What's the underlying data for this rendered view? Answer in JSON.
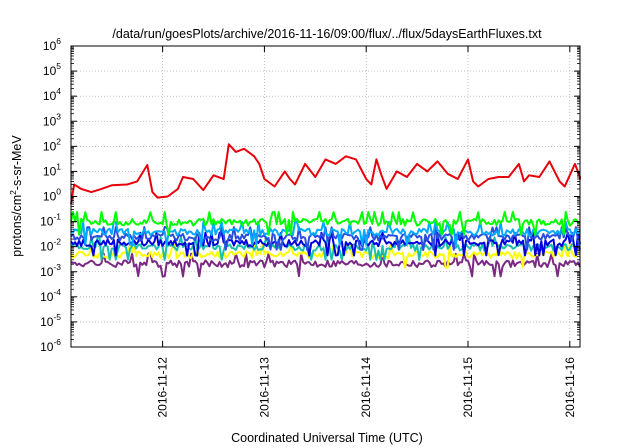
{
  "chart_data": {
    "type": "line",
    "title": "/data/run/goesPlots/archive/2016-11-16/09:00/flux/../flux/5daysEarthFluxes.txt",
    "xlabel": "Coordinated Universal Time (UTC)",
    "ylabel": {
      "base": "protons/cm",
      "sup": "2",
      "rest": "-s-sr-MeV"
    },
    "yscale": "log",
    "ylim_exp": [
      -6,
      6
    ],
    "y_ticks": [
      {
        "base": "10",
        "exp": "6"
      },
      {
        "base": "10",
        "exp": "5"
      },
      {
        "base": "10",
        "exp": "4"
      },
      {
        "base": "10",
        "exp": "3"
      },
      {
        "base": "10",
        "exp": "2"
      },
      {
        "base": "10",
        "exp": "1"
      },
      {
        "base": "10",
        "exp": "0"
      },
      {
        "base": "10",
        "exp": "-1"
      },
      {
        "base": "10",
        "exp": "-2"
      },
      {
        "base": "10",
        "exp": "-3"
      },
      {
        "base": "10",
        "exp": "-4"
      },
      {
        "base": "10",
        "exp": "-5"
      },
      {
        "base": "10",
        "exp": "-6"
      }
    ],
    "xlim_days": [
      0,
      5
    ],
    "x_ticks": [
      {
        "day": 0.9,
        "label": "2016-11-12"
      },
      {
        "day": 1.9,
        "label": "2016-11-13"
      },
      {
        "day": 2.9,
        "label": "2016-11-14"
      },
      {
        "day": 3.9,
        "label": "2016-11-15"
      },
      {
        "day": 4.9,
        "label": "2016-11-16"
      }
    ],
    "grid": true,
    "series": [
      {
        "color": "#e8000b",
        "points": [
          [
            0.0,
            0.5
          ],
          [
            0.03,
            3
          ],
          [
            0.1,
            2
          ],
          [
            0.2,
            1.5
          ],
          [
            0.3,
            2
          ],
          [
            0.4,
            2.8
          ],
          [
            0.55,
            3
          ],
          [
            0.65,
            4
          ],
          [
            0.75,
            18
          ],
          [
            0.8,
            1.5
          ],
          [
            0.85,
            0.9
          ],
          [
            0.95,
            1
          ],
          [
            1.05,
            2
          ],
          [
            1.1,
            6
          ],
          [
            1.2,
            5
          ],
          [
            1.3,
            1.8
          ],
          [
            1.4,
            7
          ],
          [
            1.5,
            5
          ],
          [
            1.55,
            120
          ],
          [
            1.62,
            60
          ],
          [
            1.7,
            80
          ],
          [
            1.8,
            40
          ],
          [
            1.85,
            20
          ],
          [
            1.9,
            5
          ],
          [
            2.0,
            2.5
          ],
          [
            2.1,
            10
          ],
          [
            2.15,
            5
          ],
          [
            2.2,
            3
          ],
          [
            2.3,
            20
          ],
          [
            2.4,
            6
          ],
          [
            2.5,
            30
          ],
          [
            2.6,
            20
          ],
          [
            2.7,
            40
          ],
          [
            2.8,
            30
          ],
          [
            2.9,
            5
          ],
          [
            2.95,
            3
          ],
          [
            3.0,
            30
          ],
          [
            3.05,
            7
          ],
          [
            3.1,
            2
          ],
          [
            3.2,
            10
          ],
          [
            3.3,
            6
          ],
          [
            3.4,
            20
          ],
          [
            3.5,
            10
          ],
          [
            3.6,
            25
          ],
          [
            3.7,
            8
          ],
          [
            3.8,
            5
          ],
          [
            3.9,
            30
          ],
          [
            3.95,
            4
          ],
          [
            4.0,
            2.5
          ],
          [
            4.1,
            5
          ],
          [
            4.2,
            6
          ],
          [
            4.3,
            6
          ],
          [
            4.4,
            20
          ],
          [
            4.45,
            4
          ],
          [
            4.5,
            7
          ],
          [
            4.6,
            6
          ],
          [
            4.7,
            25
          ],
          [
            4.8,
            4
          ],
          [
            4.85,
            2.5
          ],
          [
            4.95,
            20
          ],
          [
            5.0,
            6
          ],
          [
            5.1,
            5
          ],
          [
            5.2,
            6
          ],
          [
            5.3,
            5
          ],
          [
            5.4,
            6
          ]
        ]
      },
      {
        "color": "#00ff00",
        "level": 0.1
      },
      {
        "color": "#00aaff",
        "level": 0.04
      },
      {
        "color": "#2a4fe0",
        "level": 0.025
      },
      {
        "color": "#0000dd",
        "level": 0.015
      },
      {
        "color": "#19c0b0",
        "level": 0.01
      },
      {
        "color": "#ffff00",
        "level": 0.005
      },
      {
        "color": "#7a2a82",
        "level": 0.0022
      }
    ]
  }
}
